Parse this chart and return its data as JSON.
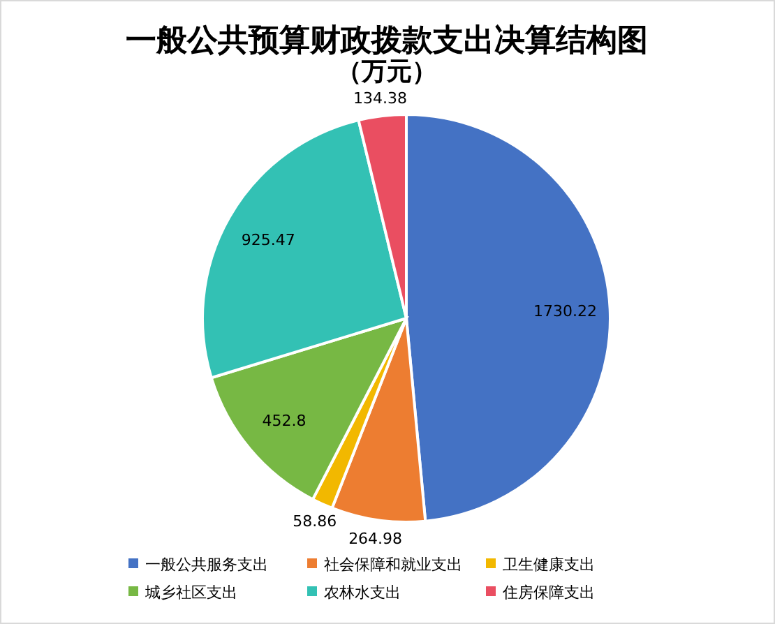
{
  "chart_data": {
    "type": "pie",
    "title": "一般公共预算财政拨款支出决算结构图",
    "subtitle": "（万元）",
    "categories": [
      "一般公共服务支出",
      "社会保障和就业支出",
      "卫生健康支出",
      "城乡社区支出",
      "农林水支出",
      "住房保障支出"
    ],
    "values": [
      1730.22,
      264.98,
      58.86,
      452.8,
      925.47,
      134.38
    ],
    "colors": [
      "#4472c4",
      "#ed7d31",
      "#f2b800",
      "#77b844",
      "#33c1b4",
      "#ea4e61"
    ],
    "data_labels": true,
    "legend": "bottom"
  }
}
